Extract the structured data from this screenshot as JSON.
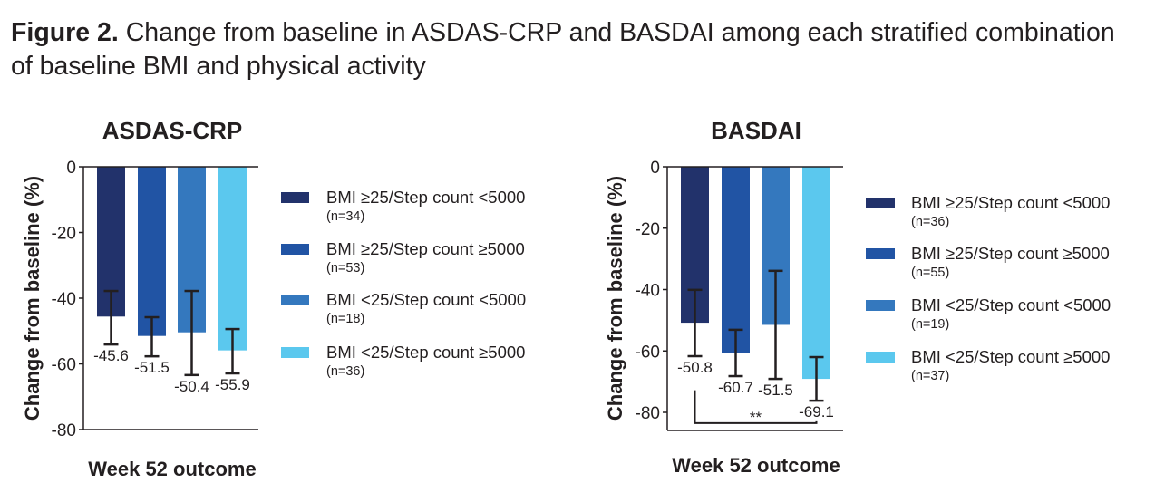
{
  "figure": {
    "label": "Figure 2.",
    "caption": " Change from baseline in ASDAS-CRP and BASDAI among each stratified combination of baseline BMI and physical activity"
  },
  "colors": {
    "series": [
      "#22326b",
      "#2154a4",
      "#3478be",
      "#5bc8ee"
    ],
    "text": "#231f20"
  },
  "chart_data": [
    {
      "type": "bar",
      "title": "ASDAS-CRP",
      "xlabel": "Week 52 outcome",
      "ylabel": "Change from baseline (%)",
      "ylim": [
        -80,
        0
      ],
      "yticks": [
        0,
        -20,
        -40,
        -60,
        -80
      ],
      "ytick_labels": [
        "0",
        "-20",
        "-40",
        "-60",
        "-80"
      ],
      "grid": false,
      "legend_placement": "right",
      "categories": [
        "BMI ≥25/Step count <5000",
        "BMI ≥25/Step count ≥5000",
        "BMI <25/Step count <5000",
        "BMI <25/Step count ≥5000"
      ],
      "n_labels": [
        "(n=34)",
        "(n=53)",
        "(n=18)",
        "(n=36)"
      ],
      "values": [
        -45.6,
        -51.5,
        -50.4,
        -55.9
      ],
      "value_labels": [
        "-45.6",
        "-51.5",
        "-50.4",
        "-55.9"
      ],
      "error_bars": [
        {
          "upper": -37.8,
          "lower": -54.1
        },
        {
          "upper": -45.8,
          "lower": -57.7
        },
        {
          "upper": -37.8,
          "lower": -63.4
        },
        {
          "upper": -49.4,
          "lower": -62.9
        }
      ],
      "significance": null
    },
    {
      "type": "bar",
      "title": "BASDAI",
      "xlabel": "Week 52 outcome",
      "ylabel": "Change from baseline (%)",
      "ylim": [
        -80,
        0
      ],
      "yticks": [
        0,
        -20,
        -40,
        -60,
        -80
      ],
      "ytick_labels": [
        "0",
        "-20",
        "-40",
        "-60",
        "-80"
      ],
      "grid": false,
      "legend_placement": "right",
      "categories": [
        "BMI ≥25/Step count <5000",
        "BMI ≥25/Step count ≥5000",
        "BMI <25/Step count <5000",
        "BMI <25/Step count ≥5000"
      ],
      "n_labels": [
        "(n=36)",
        "(n=55)",
        "(n=19)",
        "(n=37)"
      ],
      "values": [
        -50.8,
        -60.7,
        -51.5,
        -69.1
      ],
      "value_labels": [
        "-50.8",
        "-60.7",
        "-51.5",
        "-69.1"
      ],
      "error_bars": [
        {
          "upper": -40.1,
          "lower": -61.7
        },
        {
          "upper": -53.1,
          "lower": -68.2
        },
        {
          "upper": -33.9,
          "lower": -69.1
        },
        {
          "upper": -62.0,
          "lower": -76.2
        }
      ],
      "significance": {
        "from": 0,
        "to": 3,
        "label": "**"
      }
    }
  ]
}
